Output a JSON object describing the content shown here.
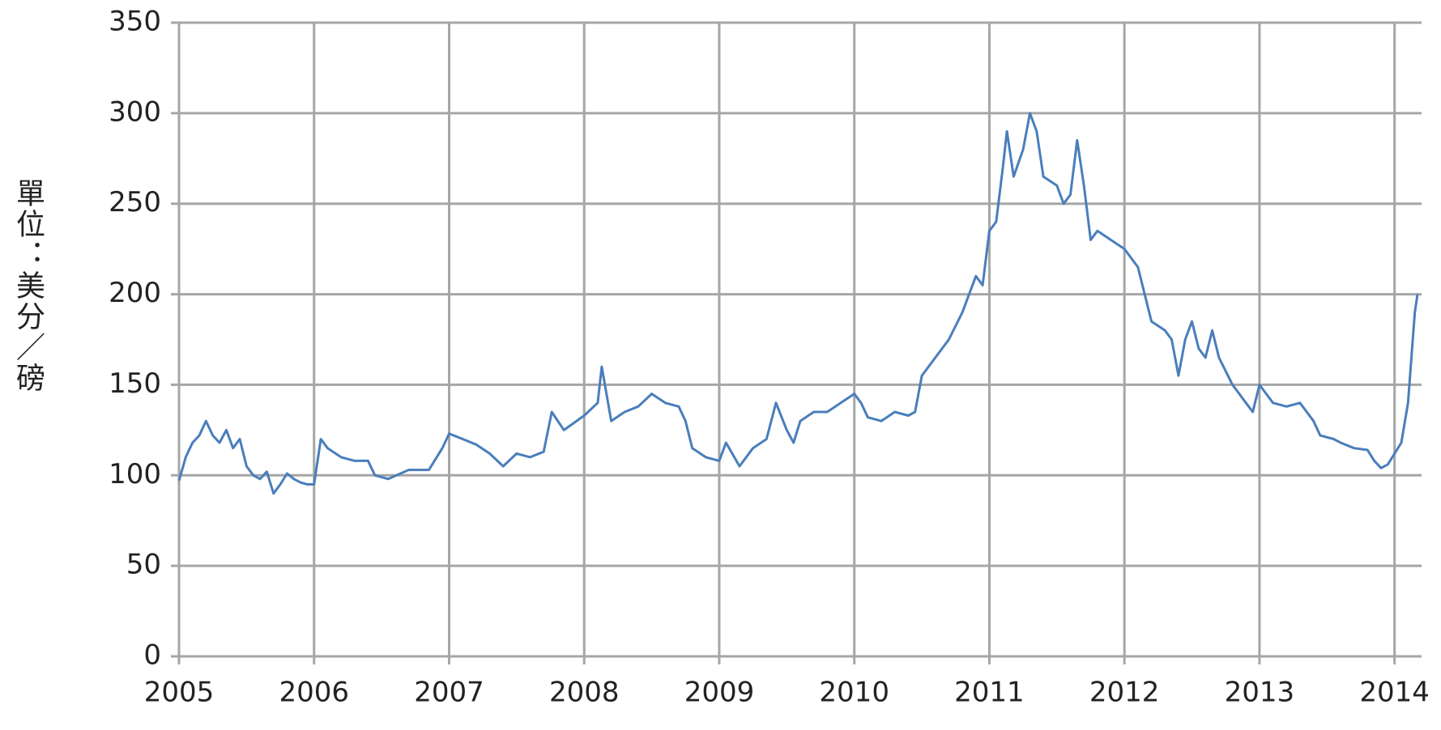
{
  "chart_data": {
    "type": "line",
    "y_label": "單位：美分／磅",
    "x": [
      2005.0,
      2005.05,
      2005.1,
      2005.15,
      2005.2,
      2005.25,
      2005.3,
      2005.35,
      2005.4,
      2005.45,
      2005.5,
      2005.55,
      2005.6,
      2005.65,
      2005.7,
      2005.75,
      2005.8,
      2005.85,
      2005.9,
      2005.95,
      2006.0,
      2006.05,
      2006.1,
      2006.2,
      2006.3,
      2006.4,
      2006.45,
      2006.55,
      2006.7,
      2006.85,
      2006.95,
      2007.0,
      2007.1,
      2007.2,
      2007.3,
      2007.4,
      2007.5,
      2007.6,
      2007.7,
      2007.76,
      2007.85,
      2008.0,
      2008.1,
      2008.13,
      2008.2,
      2008.3,
      2008.4,
      2008.5,
      2008.6,
      2008.7,
      2008.75,
      2008.8,
      2008.9,
      2009.0,
      2009.05,
      2009.15,
      2009.25,
      2009.35,
      2009.42,
      2009.5,
      2009.55,
      2009.6,
      2009.7,
      2009.8,
      2009.9,
      2010.0,
      2010.05,
      2010.1,
      2010.2,
      2010.3,
      2010.4,
      2010.45,
      2010.5,
      2010.6,
      2010.7,
      2010.8,
      2010.85,
      2010.9,
      2010.95,
      2011.0,
      2011.05,
      2011.1,
      2011.13,
      2011.18,
      2011.25,
      2011.3,
      2011.35,
      2011.4,
      2011.5,
      2011.55,
      2011.6,
      2011.65,
      2011.7,
      2011.75,
      2011.8,
      2011.9,
      2012.0,
      2012.1,
      2012.15,
      2012.2,
      2012.3,
      2012.35,
      2012.4,
      2012.45,
      2012.5,
      2012.55,
      2012.6,
      2012.65,
      2012.7,
      2012.8,
      2012.9,
      2012.95,
      2013.0,
      2013.05,
      2013.1,
      2013.2,
      2013.3,
      2013.4,
      2013.45,
      2013.55,
      2013.6,
      2013.7,
      2013.8,
      2013.85,
      2013.9,
      2013.95,
      2014.0,
      2014.05,
      2014.1,
      2014.13,
      2014.15,
      2014.17
    ],
    "values": [
      97,
      110,
      118,
      122,
      130,
      122,
      118,
      125,
      115,
      120,
      105,
      100,
      98,
      102,
      90,
      95,
      101,
      98,
      96,
      95,
      95,
      120,
      115,
      110,
      108,
      108,
      100,
      98,
      103,
      103,
      115,
      123,
      120,
      117,
      112,
      105,
      112,
      110,
      113,
      135,
      125,
      133,
      140,
      160,
      130,
      135,
      138,
      145,
      140,
      138,
      130,
      115,
      110,
      108,
      118,
      105,
      115,
      120,
      140,
      125,
      118,
      130,
      135,
      135,
      140,
      145,
      140,
      132,
      130,
      135,
      133,
      135,
      155,
      165,
      175,
      190,
      200,
      210,
      205,
      235,
      240,
      270,
      290,
      265,
      280,
      300,
      290,
      265,
      260,
      250,
      255,
      285,
      260,
      230,
      235,
      230,
      225,
      215,
      200,
      185,
      180,
      175,
      155,
      175,
      185,
      170,
      165,
      180,
      165,
      150,
      140,
      135,
      150,
      145,
      140,
      138,
      140,
      130,
      122,
      120,
      118,
      115,
      114,
      108,
      104,
      106,
      112,
      118,
      140,
      170,
      190,
      200
    ],
    "color": "#4a7ebb",
    "xlim": [
      2005,
      2014.2
    ],
    "xticks": [
      2005,
      2006,
      2007,
      2008,
      2009,
      2010,
      2011,
      2012,
      2013,
      2014
    ],
    "ylim": [
      0,
      350
    ],
    "yticks": [
      0,
      50,
      100,
      150,
      200,
      250,
      300,
      350
    ],
    "grid": true
  }
}
